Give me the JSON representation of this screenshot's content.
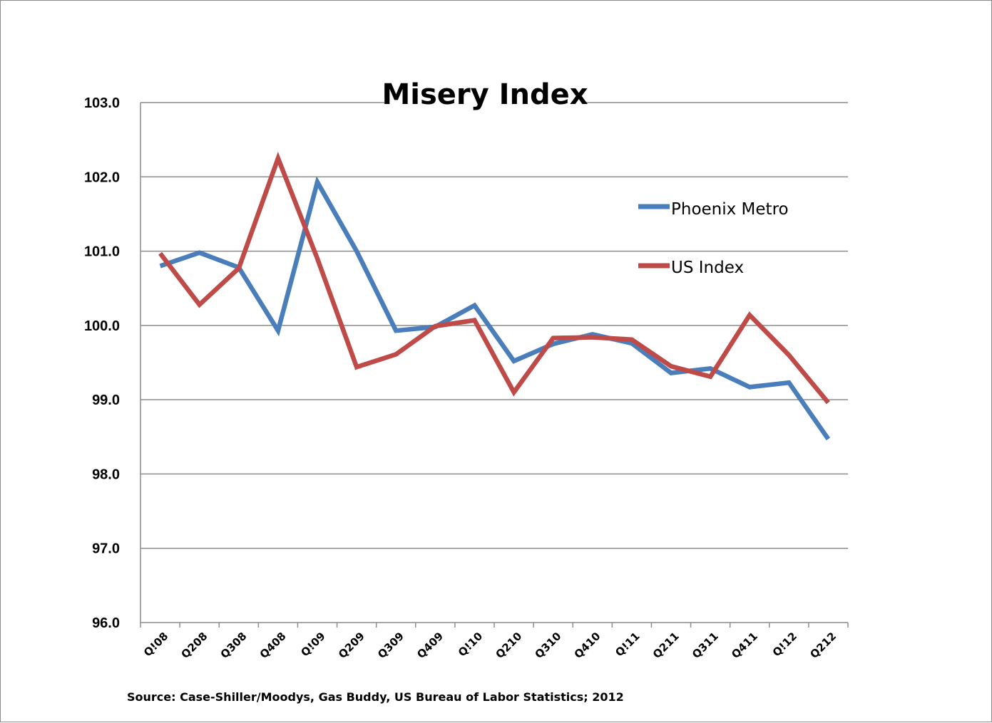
{
  "chart_data": {
    "type": "line",
    "title": "Misery Index",
    "source": "Source: Case-Shiller/Moodys, Gas Buddy, US Bureau of Labor Statistics; 2012",
    "xlabel": "",
    "ylabel": "",
    "ylim": [
      96.0,
      103.0
    ],
    "y_ticks": [
      "96.0",
      "97.0",
      "98.0",
      "99.0",
      "100.0",
      "101.0",
      "102.0",
      "103.0"
    ],
    "grid": true,
    "legend_position": "right",
    "categories": [
      "Q!08",
      "Q208",
      "Q308",
      "Q408",
      "Q!09",
      "Q209",
      "Q309",
      "Q409",
      "Q!10",
      "Q210",
      "Q310",
      "Q410",
      "Q!11",
      "Q211",
      "Q311",
      "Q411",
      "Q!12",
      "Q212"
    ],
    "series": [
      {
        "name": "Phoenix Metro",
        "color": "#4a7ebb",
        "values": [
          100.8,
          100.98,
          100.78,
          99.93,
          101.93,
          101.0,
          99.93,
          99.98,
          100.27,
          99.52,
          99.75,
          99.88,
          99.76,
          99.36,
          99.42,
          99.17,
          99.23,
          98.47
        ]
      },
      {
        "name": "US Index",
        "color": "#be4b48",
        "values": [
          100.97,
          100.28,
          100.77,
          102.25,
          100.9,
          99.44,
          99.61,
          99.99,
          100.07,
          99.1,
          99.83,
          99.84,
          99.81,
          99.45,
          99.31,
          100.14,
          99.6,
          98.96
        ]
      }
    ]
  }
}
